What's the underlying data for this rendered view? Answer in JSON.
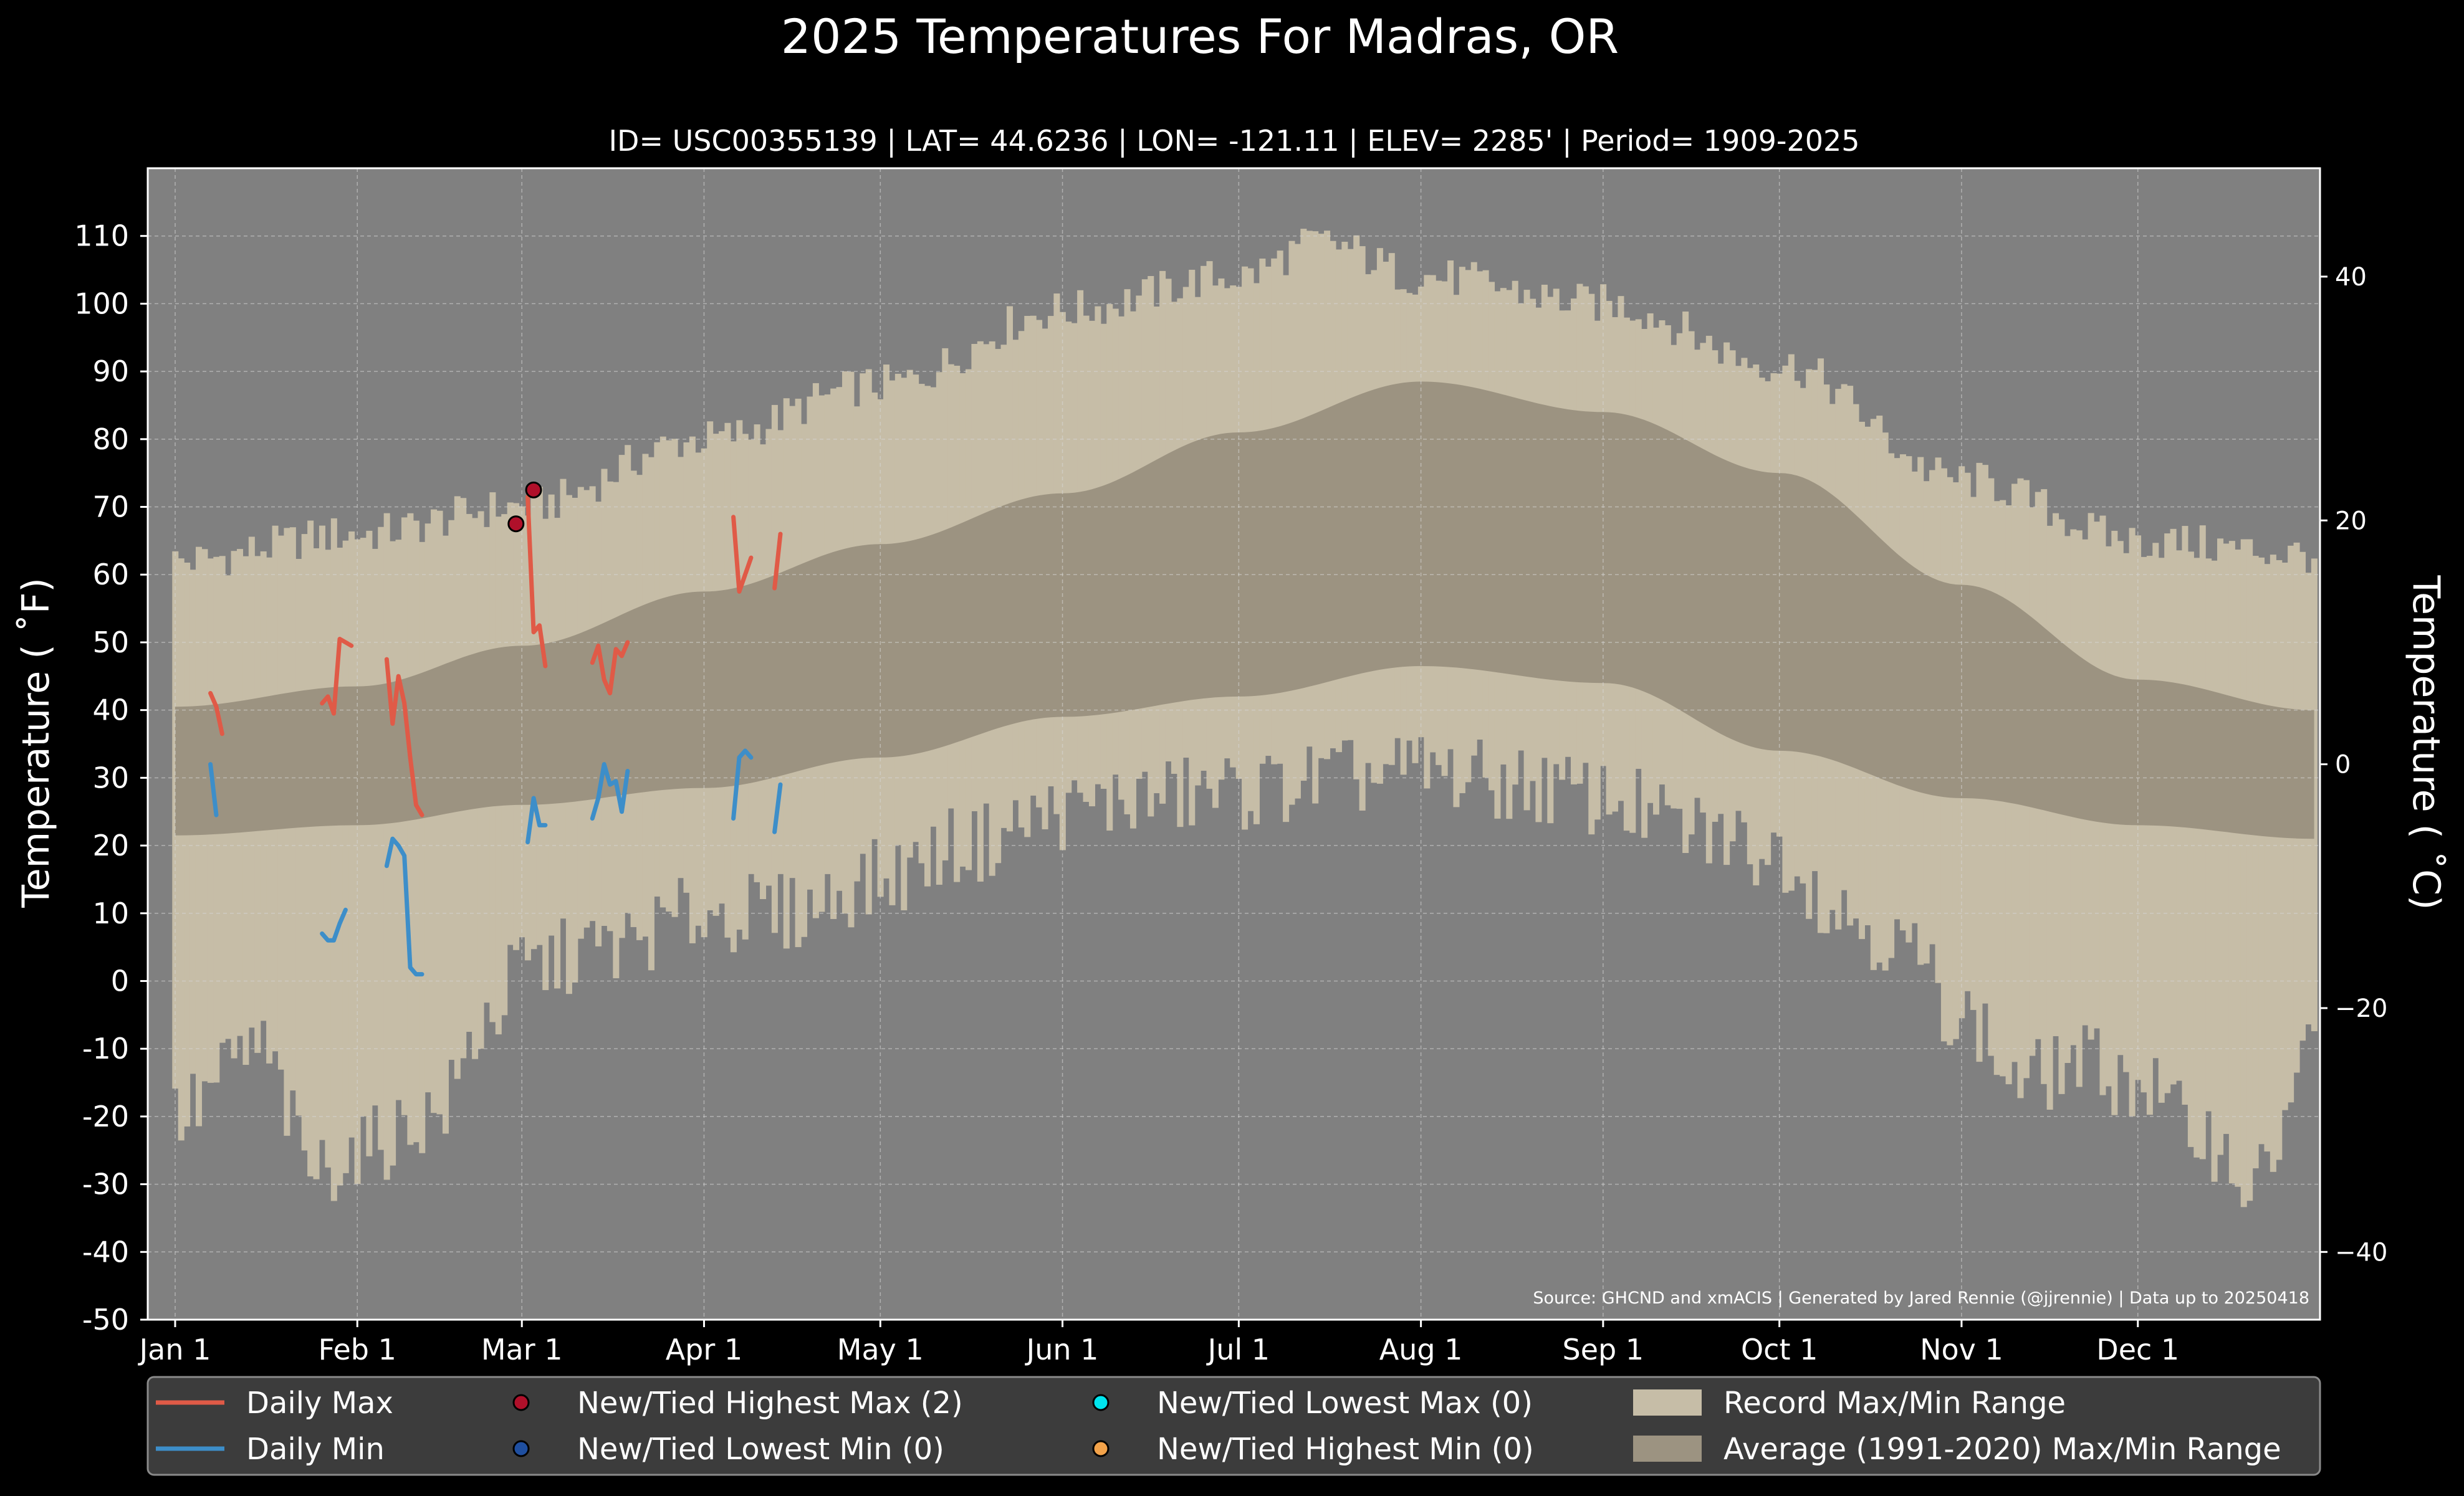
{
  "chart_data": {
    "type": "area",
    "title": "2025 Temperatures For Madras, OR",
    "subtitle": "ID= USC00355139 | LAT= 44.6236 | LON= -121.11 | ELEV= 2285' | Period= 1909-2025",
    "ylabel": "Temperature ( ˚F)",
    "ylabel_right": "Temperature ( ˚C)",
    "source": "Source: GHCND and xmACIS | Generated by Jared Rennie (@jjrennie) | Data up to 20250418",
    "ylim": [
      -50,
      120
    ],
    "ylim_right_c": [
      -45.6,
      48.9
    ],
    "grid": true,
    "yticks": [
      "-50",
      "-40",
      "-30",
      "-20",
      "-10",
      "0",
      "10",
      "20",
      "30",
      "40",
      "50",
      "60",
      "70",
      "80",
      "90",
      "100",
      "110"
    ],
    "yticks_right": [
      "−40",
      "−20",
      "0",
      "20",
      "40"
    ],
    "x_ticks": [
      {
        "label": "Jan 1",
        "day": 1
      },
      {
        "label": "Feb 1",
        "day": 32
      },
      {
        "label": "Mar 1",
        "day": 60
      },
      {
        "label": "Apr 1",
        "day": 91
      },
      {
        "label": "May 1",
        "day": 121
      },
      {
        "label": "Jun 1",
        "day": 152
      },
      {
        "label": "Jul 1",
        "day": 182
      },
      {
        "label": "Aug 1",
        "day": 213
      },
      {
        "label": "Sep 1",
        "day": 244
      },
      {
        "label": "Oct 1",
        "day": 274
      },
      {
        "label": "Nov 1",
        "day": 305
      },
      {
        "label": "Dec 1",
        "day": 335
      }
    ],
    "record_max_monthly_approx": {
      "day": [
        1,
        32,
        60,
        91,
        121,
        152,
        182,
        196,
        213,
        244,
        274,
        305,
        335,
        365
      ],
      "value": [
        62,
        66,
        70,
        80,
        88,
        99,
        104,
        109,
        104,
        100,
        91,
        74,
        65,
        63
      ]
    },
    "record_min_monthly_approx": {
      "day": [
        1,
        15,
        25,
        32,
        45,
        55,
        60,
        75,
        91,
        105,
        121,
        135,
        152,
        165,
        182,
        200,
        213,
        230,
        244,
        260,
        274,
        285,
        295,
        305,
        315,
        325,
        335,
        345,
        355,
        365
      ],
      "value": [
        -20,
        -10,
        -28,
        -25,
        -20,
        -5,
        2,
        5,
        10,
        10,
        15,
        20,
        25,
        27,
        28,
        30,
        31,
        29,
        27,
        22,
        19,
        10,
        5,
        -5,
        -15,
        -12,
        -15,
        -22,
        -30,
        -10
      ]
    },
    "average_high": {
      "day": [
        1,
        32,
        60,
        91,
        121,
        152,
        182,
        213,
        244,
        274,
        305,
        335,
        365
      ],
      "value": [
        40.5,
        43.5,
        49.5,
        57.5,
        64.5,
        72,
        81,
        88.5,
        84,
        75,
        58.5,
        44.5,
        40
      ]
    },
    "average_low": {
      "day": [
        1,
        32,
        60,
        91,
        121,
        152,
        182,
        213,
        244,
        274,
        305,
        335,
        365
      ],
      "value": [
        21.5,
        23,
        26,
        28.5,
        33,
        39,
        42,
        46.5,
        44,
        34,
        27,
        23,
        21
      ]
    },
    "series": [
      {
        "name": "Daily Max",
        "color": "#e05a47",
        "segments": [
          [
            [
              7,
              42.5
            ],
            [
              8,
              40.5
            ],
            [
              9,
              36.5
            ]
          ],
          [
            [
              26,
              41
            ],
            [
              27,
              42
            ],
            [
              28,
              39.5
            ],
            [
              29,
              50.5
            ],
            [
              30,
              50
            ],
            [
              31,
              49.5
            ]
          ],
          [
            [
              37,
              47.5
            ],
            [
              38,
              38
            ],
            [
              39,
              45
            ],
            [
              40,
              41
            ],
            [
              41,
              33
            ],
            [
              42,
              26
            ],
            [
              43,
              24.5
            ]
          ],
          [
            [
              61,
              71.5
            ],
            [
              62,
              51.5
            ],
            [
              63,
              52.5
            ],
            [
              64,
              46.5
            ]
          ],
          [
            [
              72,
              47
            ],
            [
              73,
              49.5
            ],
            [
              74,
              44.5
            ],
            [
              75,
              42.5
            ],
            [
              76,
              49
            ],
            [
              77,
              48
            ],
            [
              78,
              50
            ]
          ],
          [
            [
              96,
              68.5
            ],
            [
              97,
              57.5
            ],
            [
              98,
              60
            ],
            [
              99,
              62.5
            ]
          ],
          [
            [
              103,
              58
            ],
            [
              104,
              66
            ]
          ]
        ]
      },
      {
        "name": "Daily Min",
        "color": "#3d8ec9",
        "segments": [
          [
            [
              7,
              32
            ],
            [
              8,
              24.5
            ]
          ],
          [
            [
              26,
              7
            ],
            [
              27,
              6
            ],
            [
              28,
              6
            ],
            [
              29,
              8.5
            ],
            [
              30,
              10.5
            ]
          ],
          [
            [
              37,
              17
            ],
            [
              38,
              21
            ],
            [
              39,
              20
            ],
            [
              40,
              18.5
            ],
            [
              41,
              2
            ],
            [
              42,
              1
            ],
            [
              43,
              1
            ]
          ],
          [
            [
              61,
              20.5
            ],
            [
              62,
              27
            ],
            [
              63,
              23
            ],
            [
              64,
              23
            ]
          ],
          [
            [
              72,
              24
            ],
            [
              73,
              27
            ],
            [
              74,
              32
            ],
            [
              75,
              29
            ],
            [
              76,
              29.5
            ],
            [
              77,
              25
            ],
            [
              78,
              31
            ]
          ],
          [
            [
              96,
              24
            ],
            [
              97,
              33
            ],
            [
              98,
              34
            ],
            [
              99,
              33
            ]
          ],
          [
            [
              103,
              22
            ],
            [
              104,
              29
            ]
          ]
        ]
      }
    ],
    "record_points": {
      "new_highest_max": [
        [
          59,
          67.5
        ],
        [
          62,
          72.5
        ]
      ],
      "new_lowest_min": [],
      "new_lowest_max": [],
      "new_highest_min": []
    },
    "legend": [
      {
        "label": "Daily Max",
        "kind": "line",
        "color": "#e05a47"
      },
      {
        "label": "Daily Min",
        "kind": "line",
        "color": "#3d8ec9"
      },
      {
        "label": "New/Tied Highest Max (2)",
        "kind": "dot",
        "color": "#b0102a"
      },
      {
        "label": "New/Tied Lowest Min (0)",
        "kind": "dot",
        "color": "#1f4fa0"
      },
      {
        "label": "New/Tied Lowest Max (0)",
        "kind": "dot",
        "color": "#00e5ee"
      },
      {
        "label": "New/Tied Highest Min (0)",
        "kind": "dot",
        "color": "#f2a24a"
      },
      {
        "label": "Record Max/Min Range",
        "kind": "patch",
        "color": "#c6bda7"
      },
      {
        "label": "Average (1991-2020) Max/Min Range",
        "kind": "patch",
        "color": "#9c9381"
      }
    ],
    "legend_placement": "bottom",
    "colors": {
      "background": "#000000",
      "plot_background": "#808080",
      "record_range": "#c6bda7",
      "average_range": "#9c9381"
    }
  }
}
